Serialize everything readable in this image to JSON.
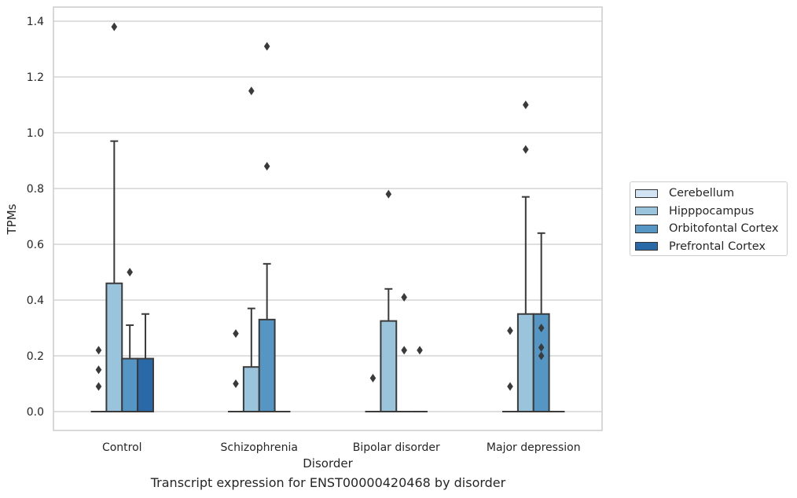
{
  "chart_data": {
    "type": "box",
    "xlabel": "Disorder",
    "ylabel": "TPMs",
    "ylim": [
      -0.065,
      1.45
    ],
    "yticks": [
      "0.0",
      "0.2",
      "0.4",
      "0.6",
      "0.8",
      "1.0",
      "1.2",
      "1.4"
    ],
    "grid": true,
    "legend_position": "right",
    "categories": [
      "Control",
      "Schizophrenia",
      "Bipolar disorder",
      "Major depression"
    ],
    "series": [
      {
        "name": "Cerebellum",
        "color": "#d2e3f3",
        "boxes": [
          {
            "whislo": 0,
            "q1": 0,
            "med": 0,
            "q3": 0,
            "whishi": 0,
            "fliers": [
              0.09,
              0.15,
              0.22
            ]
          },
          {
            "whislo": 0,
            "q1": 0,
            "med": 0,
            "q3": 0,
            "whishi": 0,
            "fliers": [
              0.1,
              0.28
            ]
          },
          {
            "whislo": 0,
            "q1": 0,
            "med": 0,
            "q3": 0,
            "whishi": 0,
            "fliers": [
              0.12
            ]
          },
          {
            "whislo": 0,
            "q1": 0,
            "med": 0,
            "q3": 0,
            "whishi": 0,
            "fliers": [
              0.09,
              0.29
            ]
          }
        ]
      },
      {
        "name": "Hipppocampus",
        "color": "#9ac3dc",
        "boxes": [
          {
            "whislo": 0,
            "q1": 0,
            "med": 0,
            "q3": 0.46,
            "whishi": 0.97,
            "fliers": [
              1.38
            ]
          },
          {
            "whislo": 0,
            "q1": 0,
            "med": 0,
            "q3": 0.16,
            "whishi": 0.37,
            "fliers": [
              1.15
            ]
          },
          {
            "whislo": 0,
            "q1": 0,
            "med": 0,
            "q3": 0.325,
            "whishi": 0.44,
            "fliers": [
              0.78
            ]
          },
          {
            "whislo": 0,
            "q1": 0,
            "med": 0,
            "q3": 0.35,
            "whishi": 0.77,
            "fliers": [
              0.94,
              1.1
            ]
          }
        ]
      },
      {
        "name": "Orbitofontal Cortex",
        "color": "#5596c4",
        "boxes": [
          {
            "whislo": 0,
            "q1": 0,
            "med": 0,
            "q3": 0.19,
            "whishi": 0.31,
            "fliers": [
              0.5
            ]
          },
          {
            "whislo": 0,
            "q1": 0,
            "med": 0,
            "q3": 0.33,
            "whishi": 0.53,
            "fliers": [
              0.88,
              1.31
            ]
          },
          {
            "whislo": 0,
            "q1": 0,
            "med": 0,
            "q3": 0,
            "whishi": 0,
            "fliers": [
              0.22,
              0.41
            ]
          },
          {
            "whislo": 0,
            "q1": 0,
            "med": 0,
            "q3": 0.35,
            "whishi": 0.64,
            "fliers": [
              0.2,
              0.23,
              0.3
            ]
          }
        ]
      },
      {
        "name": "Prefrontal Cortex",
        "color": "#2a69a8",
        "boxes": [
          {
            "whislo": 0,
            "q1": 0,
            "med": 0,
            "q3": 0.19,
            "whishi": 0.35,
            "fliers": []
          },
          {
            "whislo": 0,
            "q1": 0,
            "med": 0,
            "q3": 0,
            "whishi": 0,
            "fliers": []
          },
          {
            "whislo": 0,
            "q1": 0,
            "med": 0,
            "q3": 0,
            "whishi": 0,
            "fliers": [
              0.22
            ]
          },
          {
            "whislo": 0,
            "q1": 0,
            "med": 0,
            "q3": 0,
            "whishi": 0,
            "fliers": []
          }
        ]
      }
    ],
    "caption": "Transcript expression for ENST00000420468 by disorder"
  }
}
